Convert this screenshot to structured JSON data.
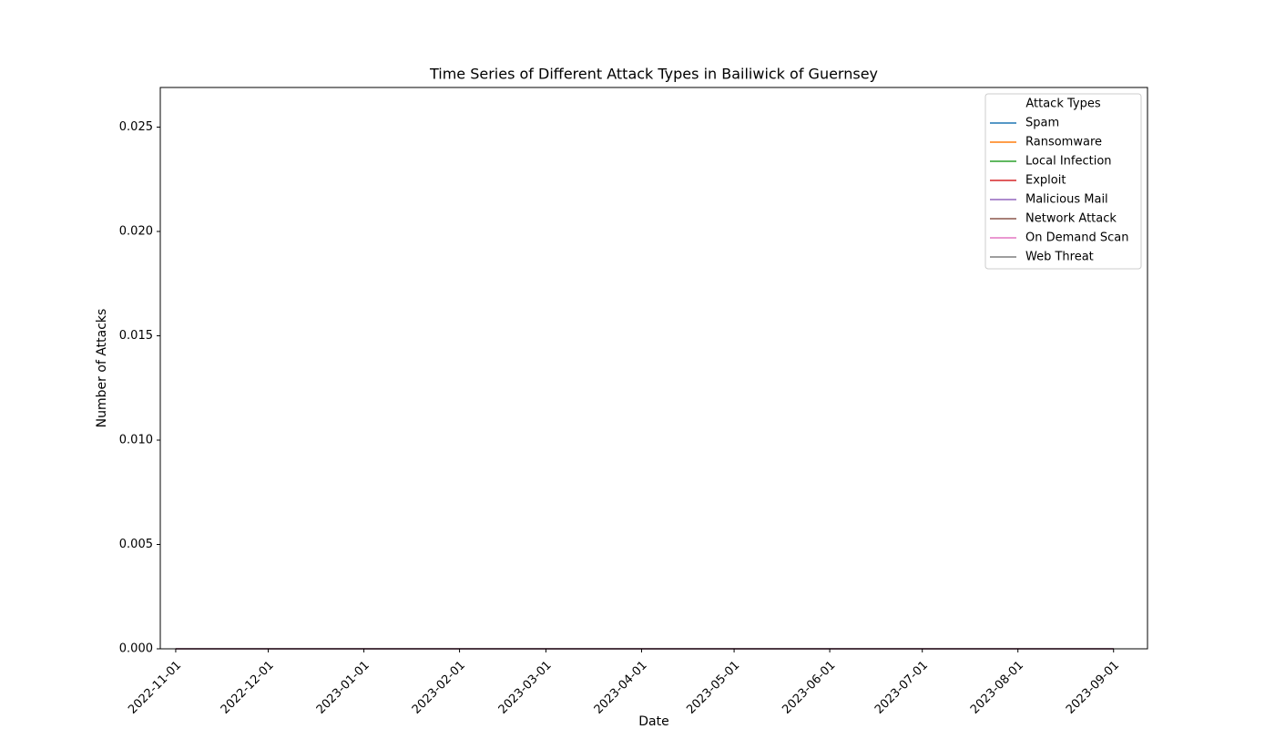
{
  "chart_data": {
    "type": "line",
    "title": "Time Series of Different Attack Types in Bailiwick of Guernsey",
    "xlabel": "Date",
    "ylabel": "Number of Attacks",
    "legend_title": "Attack Types",
    "legend": "upper right",
    "x": [
      "2022-11-01",
      "2022-12-01",
      "2023-01-01",
      "2023-02-01",
      "2023-03-01",
      "2023-04-01",
      "2023-05-01",
      "2023-06-01",
      "2023-07-01",
      "2023-08-01",
      "2023-09-01"
    ],
    "xlim": [
      "2022-10-27",
      "2023-09-12"
    ],
    "xticks": [
      "2022-11-01",
      "2022-12-01",
      "2023-01-01",
      "2023-02-01",
      "2023-03-01",
      "2023-04-01",
      "2023-05-01",
      "2023-06-01",
      "2023-07-01",
      "2023-08-01",
      "2023-09-01"
    ],
    "ylim": [
      0,
      0.0269
    ],
    "yticks": [
      {
        "value": 0,
        "label": "0.000"
      },
      {
        "value": 0.005,
        "label": "0.005"
      },
      {
        "value": 0.01,
        "label": "0.010"
      },
      {
        "value": 0.015,
        "label": "0.015"
      },
      {
        "value": 0.02,
        "label": "0.020"
      },
      {
        "value": 0.025,
        "label": "0.025"
      }
    ],
    "series": [
      {
        "name": "Spam",
        "color": "#1f77b4",
        "values": [
          0,
          0,
          0,
          0,
          0,
          0,
          0,
          0,
          0,
          0,
          0
        ]
      },
      {
        "name": "Ransomware",
        "color": "#ff7f0e",
        "values": [
          0,
          0,
          0,
          0,
          0,
          0,
          0,
          0,
          0,
          0,
          0
        ]
      },
      {
        "name": "Local Infection",
        "color": "#2ca02c",
        "values": [
          0,
          0,
          0,
          0,
          0,
          0,
          0,
          0,
          0,
          0,
          0
        ]
      },
      {
        "name": "Exploit",
        "color": "#d62728",
        "values": [
          0,
          0,
          0,
          0,
          0,
          0,
          0,
          0,
          0,
          0,
          0
        ]
      },
      {
        "name": "Malicious Mail",
        "color": "#9467bd",
        "values": [
          0,
          0,
          0,
          0,
          0,
          0,
          0,
          0,
          0,
          0,
          0
        ]
      },
      {
        "name": "Network Attack",
        "color": "#8c564b",
        "values": [
          0,
          0,
          0,
          0,
          0,
          0,
          0,
          0,
          0,
          0,
          0
        ]
      },
      {
        "name": "On Demand Scan",
        "color": "#e377c2",
        "values": [
          0,
          0,
          0,
          0,
          0,
          0,
          0,
          0,
          0,
          0,
          0
        ]
      },
      {
        "name": "Web Threat",
        "color": "#7f7f7f",
        "values": [
          0,
          0,
          0,
          0,
          0,
          0,
          0,
          0,
          0,
          0,
          0
        ]
      }
    ]
  }
}
